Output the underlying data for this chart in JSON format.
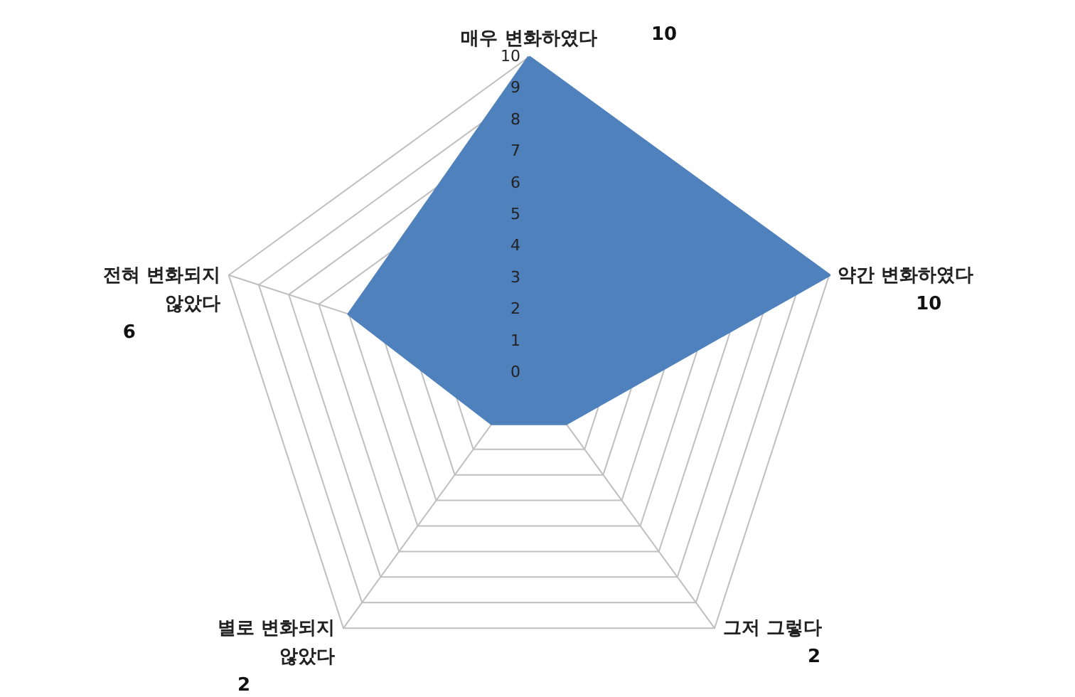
{
  "chart_data": {
    "type": "radar",
    "categories": [
      "매우 변화하였다",
      "약간 변화하였다",
      "그저 그렇다",
      "별로 변화되지\n않았다",
      "전혀 변화되지\n않았다"
    ],
    "series": [
      {
        "color": "#4f81bd",
        "values": [
          10,
          10,
          2,
          2,
          6
        ]
      }
    ],
    "ylim": [
      0,
      10
    ],
    "yticks": [
      0,
      1,
      2,
      3,
      4,
      5,
      6,
      7,
      8,
      9,
      10
    ],
    "grid": true,
    "annotations": [
      "10",
      "10",
      "2",
      "2",
      "6"
    ]
  }
}
